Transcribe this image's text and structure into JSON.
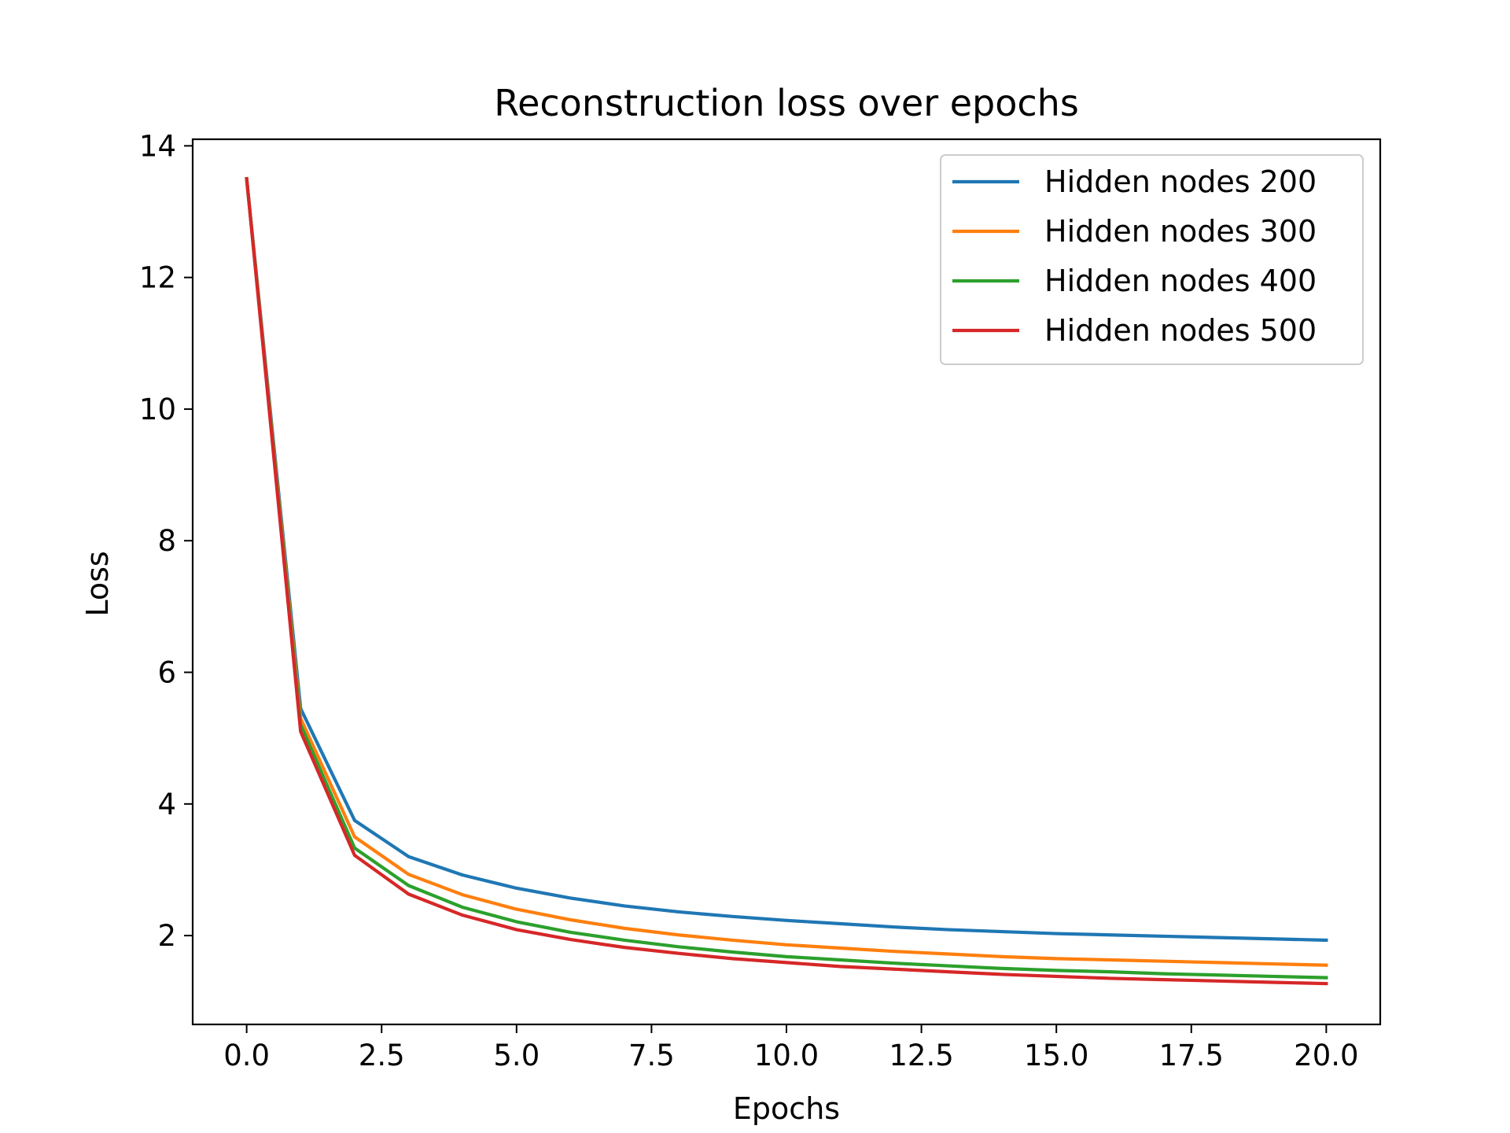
{
  "chart_data": {
    "type": "line",
    "title": "Reconstruction loss over epochs",
    "xlabel": "Epochs",
    "ylabel": "Loss",
    "xlim": [
      -1,
      21
    ],
    "ylim": [
      0.65,
      14.1
    ],
    "xticks": [
      0,
      2.5,
      5,
      7.5,
      10,
      12.5,
      15,
      17.5,
      20
    ],
    "xtick_labels": [
      "0.0",
      "2.5",
      "5.0",
      "7.5",
      "10.0",
      "12.5",
      "15.0",
      "17.5",
      "20.0"
    ],
    "yticks": [
      2,
      4,
      6,
      8,
      10,
      12,
      14
    ],
    "ytick_labels": [
      "2",
      "4",
      "6",
      "8",
      "10",
      "12",
      "14"
    ],
    "grid": false,
    "legend_position": "top-right",
    "x": [
      0,
      1,
      2,
      3,
      4,
      5,
      6,
      7,
      8,
      9,
      10,
      11,
      12,
      13,
      14,
      15,
      16,
      17,
      18,
      19,
      20
    ],
    "series": [
      {
        "name": "Hidden nodes 200",
        "color": "#1f77b4",
        "values": [
          13.5,
          5.45,
          3.75,
          3.2,
          2.92,
          2.72,
          2.57,
          2.45,
          2.36,
          2.29,
          2.23,
          2.18,
          2.13,
          2.09,
          2.06,
          2.03,
          2.01,
          1.99,
          1.97,
          1.95,
          1.93
        ]
      },
      {
        "name": "Hidden nodes 300",
        "color": "#ff7f0e",
        "values": [
          13.5,
          5.3,
          3.5,
          2.93,
          2.62,
          2.4,
          2.24,
          2.11,
          2.01,
          1.93,
          1.86,
          1.81,
          1.76,
          1.72,
          1.68,
          1.65,
          1.63,
          1.61,
          1.59,
          1.57,
          1.55
        ]
      },
      {
        "name": "Hidden nodes 400",
        "color": "#2ca02c",
        "values": [
          13.5,
          5.2,
          3.33,
          2.76,
          2.43,
          2.21,
          2.05,
          1.93,
          1.83,
          1.75,
          1.68,
          1.63,
          1.58,
          1.54,
          1.5,
          1.47,
          1.45,
          1.42,
          1.4,
          1.38,
          1.36
        ]
      },
      {
        "name": "Hidden nodes 500",
        "color": "#d62728",
        "values": [
          13.5,
          5.1,
          3.22,
          2.63,
          2.31,
          2.09,
          1.94,
          1.82,
          1.73,
          1.65,
          1.59,
          1.53,
          1.49,
          1.45,
          1.41,
          1.38,
          1.35,
          1.33,
          1.31,
          1.29,
          1.27
        ]
      }
    ]
  }
}
